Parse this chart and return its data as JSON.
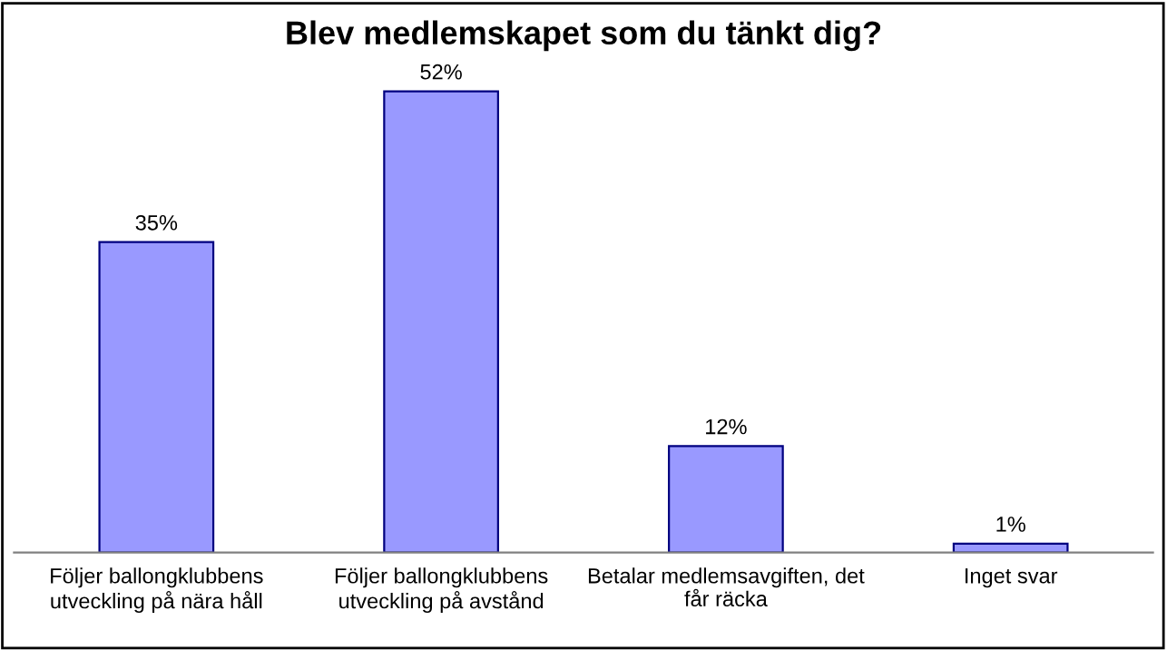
{
  "chart_data": {
    "type": "bar",
    "title": "Blev medlemskapet som du tänkt dig?",
    "categories": [
      "Följer ballongklubbens\nutveckling på nära håll",
      "Följer ballongklubbens\nutveckling på avstånd",
      "Betalar medlemsavgiften, det\nfår räcka",
      "Inget svar"
    ],
    "values": [
      35,
      52,
      12,
      1
    ],
    "value_labels": [
      "35%",
      "52%",
      "12%",
      "1%"
    ],
    "color": "#9999ff",
    "grid": false,
    "legend": false
  }
}
